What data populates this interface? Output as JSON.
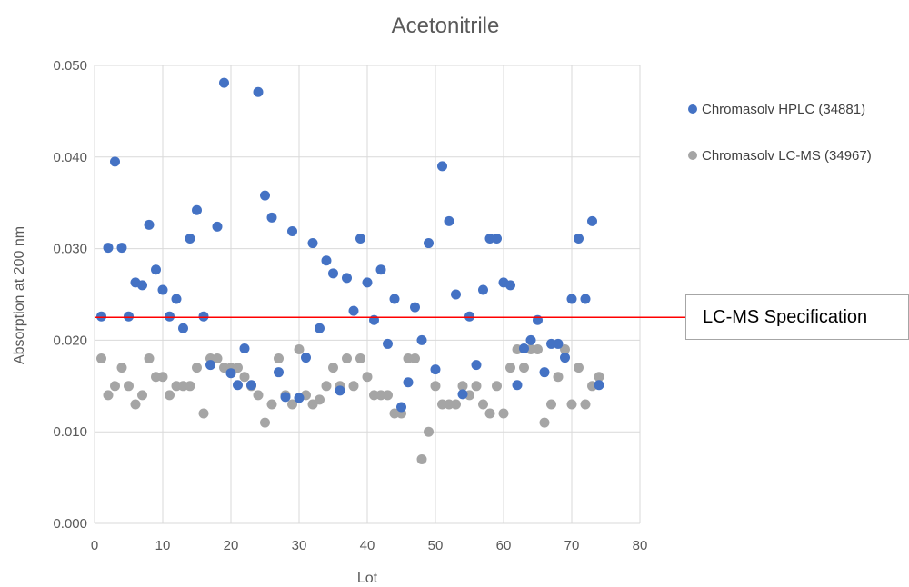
{
  "chart_data": {
    "type": "scatter",
    "title": "Acetonitrile",
    "xlabel": "Lot",
    "ylabel": "Absorption at 200 nm",
    "xlim": [
      0,
      80
    ],
    "ylim": [
      0,
      0.05
    ],
    "x_ticks": [
      0,
      10,
      20,
      30,
      40,
      50,
      60,
      70,
      80
    ],
    "y_ticks": [
      "0.000",
      "0.010",
      "0.020",
      "0.030",
      "0.040",
      "0.050"
    ],
    "grid": true,
    "legend_position": "right",
    "reference_line": {
      "label": "LC-MS Specification",
      "y": 0.0225,
      "color": "#ff0000"
    },
    "series": [
      {
        "name": "Chromasolv HPLC (34881)",
        "color": "#4472c4",
        "x": [
          1,
          2,
          3,
          4,
          5,
          6,
          7,
          8,
          9,
          10,
          11,
          12,
          13,
          14,
          15,
          16,
          17,
          18,
          19,
          20,
          21,
          22,
          23,
          24,
          25,
          26,
          27,
          28,
          29,
          30,
          31,
          32,
          33,
          34,
          35,
          36,
          37,
          38,
          39,
          40,
          41,
          42,
          43,
          44,
          45,
          46,
          47,
          48,
          49,
          50,
          51,
          52,
          53,
          54,
          55,
          56,
          57,
          58,
          59,
          60,
          61,
          62,
          63,
          64,
          65,
          66,
          67,
          68,
          69,
          70,
          71,
          72,
          73,
          74
        ],
        "y": [
          0.0226,
          0.0301,
          0.0395,
          0.0301,
          0.0226,
          0.0263,
          0.026,
          0.0326,
          0.0277,
          0.0255,
          0.0226,
          0.0245,
          0.0213,
          0.0311,
          0.0342,
          0.0226,
          0.0173,
          0.0324,
          0.0481,
          0.0164,
          0.0151,
          0.0191,
          0.0151,
          0.0471,
          0.0358,
          0.0334,
          0.0165,
          0.0138,
          0.0319,
          0.0137,
          0.0181,
          0.0306,
          0.0213,
          0.0287,
          0.0273,
          0.0145,
          0.0268,
          0.0232,
          0.0311,
          0.0263,
          0.0222,
          0.0277,
          0.0196,
          0.0245,
          0.0127,
          0.0154,
          0.0236,
          0.02,
          0.0306,
          0.0168,
          0.039,
          0.033,
          0.025,
          0.0141,
          0.0226,
          0.0173,
          0.0255,
          0.0311,
          0.0311,
          0.0263,
          0.026,
          0.0151,
          0.0191,
          0.02,
          0.0222,
          0.0165,
          0.0196,
          0.0196,
          0.0181,
          0.0245,
          0.0311,
          0.0245,
          0.033,
          0.0151
        ]
      },
      {
        "name": "Chromasolv LC-MS (34967)",
        "color": "#a5a5a5",
        "x": [
          1,
          2,
          3,
          4,
          5,
          6,
          7,
          8,
          9,
          10,
          11,
          12,
          13,
          14,
          15,
          16,
          17,
          18,
          19,
          20,
          21,
          22,
          23,
          24,
          25,
          26,
          27,
          28,
          29,
          30,
          31,
          32,
          33,
          34,
          35,
          36,
          37,
          38,
          39,
          40,
          41,
          42,
          43,
          44,
          45,
          46,
          47,
          48,
          49,
          50,
          51,
          52,
          53,
          54,
          55,
          56,
          57,
          58,
          59,
          60,
          61,
          62,
          63,
          64,
          65,
          66,
          67,
          68,
          69,
          70,
          71,
          72,
          73,
          74
        ],
        "y": [
          0.018,
          0.014,
          0.015,
          0.017,
          0.015,
          0.013,
          0.014,
          0.018,
          0.016,
          0.016,
          0.014,
          0.015,
          0.015,
          0.015,
          0.017,
          0.012,
          0.018,
          0.018,
          0.017,
          0.017,
          0.017,
          0.016,
          0.015,
          0.014,
          0.011,
          0.013,
          0.018,
          0.014,
          0.013,
          0.019,
          0.014,
          0.013,
          0.0135,
          0.015,
          0.017,
          0.015,
          0.018,
          0.015,
          0.018,
          0.016,
          0.014,
          0.014,
          0.014,
          0.012,
          0.012,
          0.018,
          0.018,
          0.007,
          0.01,
          0.015,
          0.013,
          0.013,
          0.013,
          0.015,
          0.014,
          0.015,
          0.013,
          0.012,
          0.015,
          0.012,
          0.017,
          0.019,
          0.017,
          0.019,
          0.019,
          0.011,
          0.013,
          0.016,
          0.019,
          0.013,
          0.017,
          0.013,
          0.015,
          0.016
        ]
      }
    ]
  }
}
